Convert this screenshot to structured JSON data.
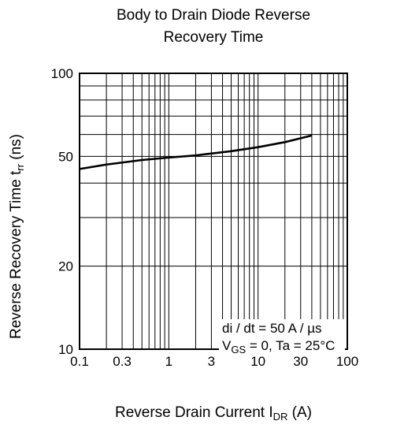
{
  "title": {
    "line1": "Body to Drain Diode Reverse",
    "line2": "Recovery Time"
  },
  "ylabel": {
    "main": "Reverse Recovery Time  t",
    "sub": "rr",
    "unit": "  (ns)"
  },
  "xlabel": {
    "main": "Reverse Drain Current  I",
    "sub": "DR",
    "unit": "  (A)"
  },
  "annotation": {
    "line1": "di / dt = 50 A / µs",
    "line2_pre": "V",
    "line2_sub": "GS",
    "line2_post": " = 0, Ta = 25°C"
  },
  "chart_data": {
    "type": "line",
    "title": "Body to Drain Diode Reverse Recovery Time",
    "xlabel": "Reverse Drain Current I_DR (A)",
    "ylabel": "Reverse Recovery Time t_rr (ns)",
    "xscale": "log",
    "yscale": "log",
    "xlim": [
      0.1,
      100
    ],
    "ylim": [
      10,
      100
    ],
    "grid": true,
    "x_ticks": [
      0.1,
      0.3,
      1,
      3,
      10,
      30,
      100
    ],
    "x_tick_labels": [
      "0.1",
      "0.3",
      "1",
      "3",
      "10",
      "30",
      "100"
    ],
    "y_ticks": [
      10,
      20,
      50,
      100
    ],
    "y_tick_labels": [
      "10",
      "20",
      "50",
      "100"
    ],
    "series": [
      {
        "x": [
          0.1,
          0.2,
          0.5,
          1,
          2,
          5,
          10,
          20,
          40
        ],
        "y": [
          45,
          46.7,
          48.5,
          49.5,
          50.4,
          52.2,
          54,
          56.3,
          59.5
        ]
      }
    ],
    "annotations": [
      "di / dt = 50 A / µs",
      "VGS = 0, Ta = 25°C"
    ]
  }
}
